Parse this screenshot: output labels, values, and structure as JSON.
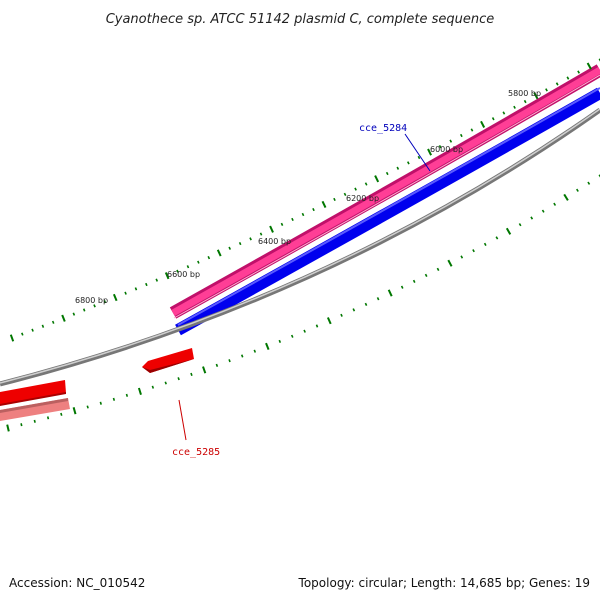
{
  "title": "Cyanothece sp. ATCC 51142 plasmid C, complete sequence",
  "accession": "Accession: NC_010542",
  "summary": "Topology: circular; Length: 14,685 bp; Genes: 19",
  "colors": {
    "forward_dark": "#c0106a",
    "forward_light": "#ff3e96",
    "forward_gene": "#0000ee",
    "backbone": "#777777",
    "reverse_gene": "#ee0000",
    "reverse_light": "#ee8080",
    "tick": "#007700",
    "label_blue": "#0000bb",
    "label_red": "#cc0000"
  },
  "ticks": {
    "labels": [
      "5800 bp",
      "6000 bp",
      "6200 bp",
      "6400 bp",
      "6600 bp",
      "6800 bp"
    ]
  },
  "genes": [
    {
      "name": "cce_5284",
      "strand": "forward"
    },
    {
      "name": "cce_5285",
      "strand": "reverse"
    }
  ]
}
